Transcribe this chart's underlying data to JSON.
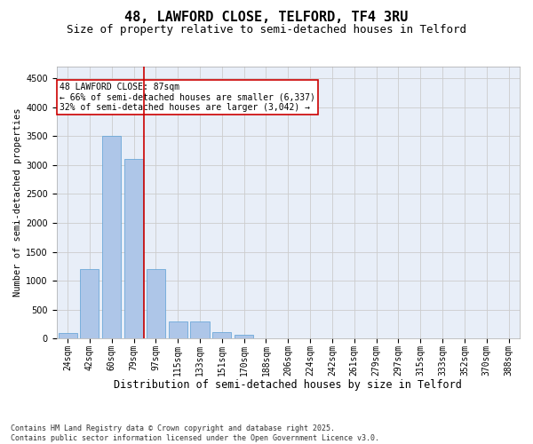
{
  "title1": "48, LAWFORD CLOSE, TELFORD, TF4 3RU",
  "title2": "Size of property relative to semi-detached houses in Telford",
  "xlabel": "Distribution of semi-detached houses by size in Telford",
  "ylabel": "Number of semi-detached properties",
  "bar_labels": [
    "24sqm",
    "42sqm",
    "60sqm",
    "79sqm",
    "97sqm",
    "115sqm",
    "133sqm",
    "151sqm",
    "170sqm",
    "188sqm",
    "206sqm",
    "224sqm",
    "242sqm",
    "261sqm",
    "279sqm",
    "297sqm",
    "315sqm",
    "333sqm",
    "352sqm",
    "370sqm",
    "388sqm"
  ],
  "bar_values": [
    100,
    1200,
    3500,
    3100,
    1200,
    300,
    300,
    120,
    60,
    5,
    0,
    0,
    0,
    0,
    0,
    0,
    0,
    0,
    0,
    0,
    0
  ],
  "bar_color": "#aec6e8",
  "bar_edgecolor": "#5a9fd4",
  "vline_color": "#cc0000",
  "annotation_text": "48 LAWFORD CLOSE: 87sqm\n← 66% of semi-detached houses are smaller (6,337)\n32% of semi-detached houses are larger (3,042) →",
  "annotation_box_color": "#cc0000",
  "ylim": [
    0,
    4700
  ],
  "yticks": [
    0,
    500,
    1000,
    1500,
    2000,
    2500,
    3000,
    3500,
    4000,
    4500
  ],
  "grid_color": "#cccccc",
  "bg_color": "#e8eef8",
  "footer": "Contains HM Land Registry data © Crown copyright and database right 2025.\nContains public sector information licensed under the Open Government Licence v3.0.",
  "title1_fontsize": 11,
  "title2_fontsize": 9,
  "xlabel_fontsize": 8.5,
  "ylabel_fontsize": 7.5,
  "tick_fontsize": 7,
  "annotation_fontsize": 7,
  "footer_fontsize": 6
}
